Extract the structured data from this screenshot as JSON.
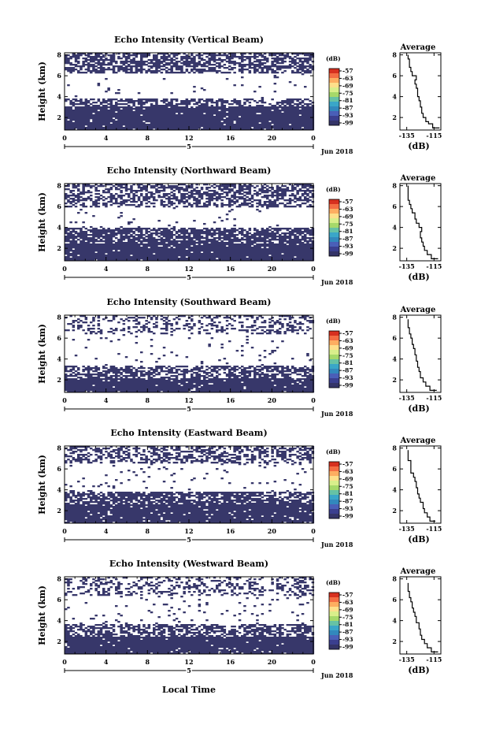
{
  "figure": {
    "bottom_xlabel": "Local Time",
    "date_label": "Jun 2018",
    "colorbar_unit": "(dB)",
    "colorbar_ticks": [
      "-57",
      "-63",
      "-69",
      "-75",
      "-81",
      "-87",
      "-93",
      "-99"
    ],
    "colorbar_colors": [
      "#d7301f",
      "#f46d43",
      "#fdae61",
      "#fee08b",
      "#d9ef8b",
      "#a6d96a",
      "#66c2a5",
      "#3aa6c8",
      "#3288bd",
      "#4a5fb8",
      "#3b3f8f",
      "#343468"
    ],
    "echo_fill_color": "#37376a",
    "heatmap_x_ticks": [
      "0",
      "4",
      "8",
      "12",
      "16",
      "20",
      "0"
    ],
    "heatmap_y_ticks": [
      "2",
      "4",
      "6",
      "8"
    ],
    "day_label": "5",
    "avg_x_ticks": [
      "-135",
      "-115"
    ],
    "avg_y_ticks": [
      "2",
      "4",
      "6",
      "8"
    ]
  },
  "panels": [
    {
      "title": "Echo Intensity (Vertical Beam)",
      "ylabel": "Height (km)",
      "avg_title": "Average",
      "avg_xlabel": "(dB)"
    },
    {
      "title": "Echo Intensity (Northward Beam)",
      "ylabel": "Height (km)",
      "avg_title": "Average",
      "avg_xlabel": "(dB)"
    },
    {
      "title": "Echo Intensity (Southward Beam)",
      "ylabel": "Height (km)",
      "avg_title": "Average",
      "avg_xlabel": "(dB)"
    },
    {
      "title": "Echo Intensity (Eastward Beam)",
      "ylabel": "Height (km)",
      "avg_title": "Average",
      "avg_xlabel": "(dB)"
    },
    {
      "title": "Echo Intensity (Westward Beam)",
      "ylabel": "Height (km)",
      "avg_title": "Average",
      "avg_xlabel": "(dB)"
    }
  ],
  "chart_data": [
    {
      "type": "heatmap",
      "title": "Echo Intensity (Vertical Beam)",
      "ylabel": "Height (km)",
      "xlim": [
        0,
        24
      ],
      "ylim": [
        0.8,
        8.2
      ],
      "colorbar_range": [
        -99,
        -57
      ],
      "layers": [
        {
          "from": 0.8,
          "to": 3.0,
          "density": 0.96
        },
        {
          "from": 3.0,
          "to": 3.8,
          "density": 0.55
        },
        {
          "from": 3.8,
          "to": 6.2,
          "density": 0.03
        },
        {
          "from": 6.2,
          "to": 8.2,
          "density": 0.62
        }
      ]
    },
    {
      "type": "heatmap",
      "title": "Echo Intensity (Northward Beam)",
      "ylabel": "Height (km)",
      "xlim": [
        0,
        24
      ],
      "ylim": [
        0.8,
        8.2
      ],
      "colorbar_range": [
        -99,
        -57
      ],
      "layers": [
        {
          "from": 0.8,
          "to": 2.4,
          "density": 0.96
        },
        {
          "from": 2.4,
          "to": 3.9,
          "density": 0.78
        },
        {
          "from": 3.9,
          "to": 6.0,
          "density": 0.03
        },
        {
          "from": 6.0,
          "to": 8.2,
          "density": 0.55
        }
      ]
    },
    {
      "type": "heatmap",
      "title": "Echo Intensity (Southward Beam)",
      "ylabel": "Height (km)",
      "xlim": [
        0,
        24
      ],
      "ylim": [
        0.8,
        8.2
      ],
      "colorbar_range": [
        -99,
        -57
      ],
      "layers": [
        {
          "from": 0.8,
          "to": 2.2,
          "density": 0.94
        },
        {
          "from": 2.2,
          "to": 3.4,
          "density": 0.62
        },
        {
          "from": 3.4,
          "to": 6.4,
          "density": 0.03
        },
        {
          "from": 6.4,
          "to": 8.2,
          "density": 0.28
        }
      ]
    },
    {
      "type": "heatmap",
      "title": "Echo Intensity (Eastward Beam)",
      "ylabel": "Height (km)",
      "xlim": [
        0,
        24
      ],
      "ylim": [
        0.8,
        8.2
      ],
      "colorbar_range": [
        -99,
        -57
      ],
      "layers": [
        {
          "from": 0.8,
          "to": 2.6,
          "density": 0.95
        },
        {
          "from": 2.6,
          "to": 3.8,
          "density": 0.72
        },
        {
          "from": 3.8,
          "to": 6.6,
          "density": 0.04
        },
        {
          "from": 6.6,
          "to": 8.2,
          "density": 0.48
        }
      ]
    },
    {
      "type": "heatmap",
      "title": "Echo Intensity (Westward Beam)",
      "ylabel": "Height (km)",
      "xlim": [
        0,
        24
      ],
      "ylim": [
        0.8,
        8.2
      ],
      "colorbar_range": [
        -99,
        -57
      ],
      "layers": [
        {
          "from": 0.8,
          "to": 2.4,
          "density": 0.96
        },
        {
          "from": 2.4,
          "to": 3.6,
          "density": 0.55
        },
        {
          "from": 3.6,
          "to": 6.4,
          "density": 0.04
        },
        {
          "from": 6.4,
          "to": 8.2,
          "density": 0.32
        }
      ]
    },
    {
      "type": "line",
      "title": "Average",
      "xlabel": "(dB)",
      "xlim": [
        -140,
        -110
      ],
      "ylim": [
        0.8,
        8.2
      ],
      "x": [
        -111,
        -116,
        -119,
        -121,
        -123,
        -124,
        -125,
        -126,
        -127,
        -127,
        -128,
        -129,
        -128,
        -131,
        -132,
        -133,
        -133,
        -134
      ],
      "y": [
        1.0,
        1.4,
        1.6,
        2.0,
        2.4,
        3.0,
        3.6,
        4.0,
        4.4,
        4.8,
        5.2,
        5.6,
        6.0,
        6.4,
        6.8,
        7.2,
        7.6,
        8.0
      ]
    },
    {
      "type": "line",
      "title": "Average",
      "xlabel": "(dB)",
      "xlim": [
        -140,
        -110
      ],
      "ylim": [
        0.8,
        8.2
      ],
      "x": [
        -112,
        -117,
        -120,
        -122,
        -123,
        -124,
        -125,
        -124,
        -126,
        -128,
        -129,
        -131,
        -132,
        -133,
        -134,
        -134
      ],
      "y": [
        1.0,
        1.4,
        1.8,
        2.2,
        2.6,
        3.0,
        3.6,
        4.0,
        4.4,
        4.8,
        5.4,
        5.8,
        6.2,
        6.6,
        7.2,
        8.0
      ]
    },
    {
      "type": "line",
      "title": "Average",
      "xlabel": "(dB)",
      "xlim": [
        -140,
        -110
      ],
      "ylim": [
        0.8,
        8.2
      ],
      "x": [
        -113,
        -118,
        -121,
        -123,
        -125,
        -126,
        -127,
        -128,
        -129,
        -130,
        -131,
        -132,
        -133,
        -134
      ],
      "y": [
        1.0,
        1.4,
        1.8,
        2.2,
        2.8,
        3.2,
        3.8,
        4.4,
        5.0,
        5.4,
        6.0,
        6.4,
        7.0,
        7.8
      ]
    },
    {
      "type": "line",
      "title": "Average",
      "xlabel": "(dB)",
      "xlim": [
        -140,
        -110
      ],
      "ylim": [
        0.8,
        8.2
      ],
      "x": [
        -114,
        -118,
        -120,
        -122,
        -123,
        -125,
        -126,
        -127,
        -128,
        -129,
        -130,
        -132,
        -132,
        -134
      ],
      "y": [
        1.0,
        1.4,
        1.8,
        2.2,
        2.8,
        3.2,
        3.6,
        4.2,
        4.8,
        5.2,
        5.6,
        6.2,
        6.8,
        7.8
      ]
    },
    {
      "type": "line",
      "title": "Average",
      "xlabel": "(dB)",
      "xlim": [
        -140,
        -110
      ],
      "ylim": [
        0.8,
        8.2
      ],
      "x": [
        -112,
        -117,
        -120,
        -122,
        -124,
        -125,
        -126,
        -128,
        -129,
        -130,
        -131,
        -132,
        -133,
        -134
      ],
      "y": [
        1.0,
        1.4,
        1.8,
        2.2,
        2.6,
        3.2,
        3.8,
        4.4,
        4.8,
        5.2,
        5.8,
        6.2,
        6.8,
        7.6
      ]
    }
  ]
}
